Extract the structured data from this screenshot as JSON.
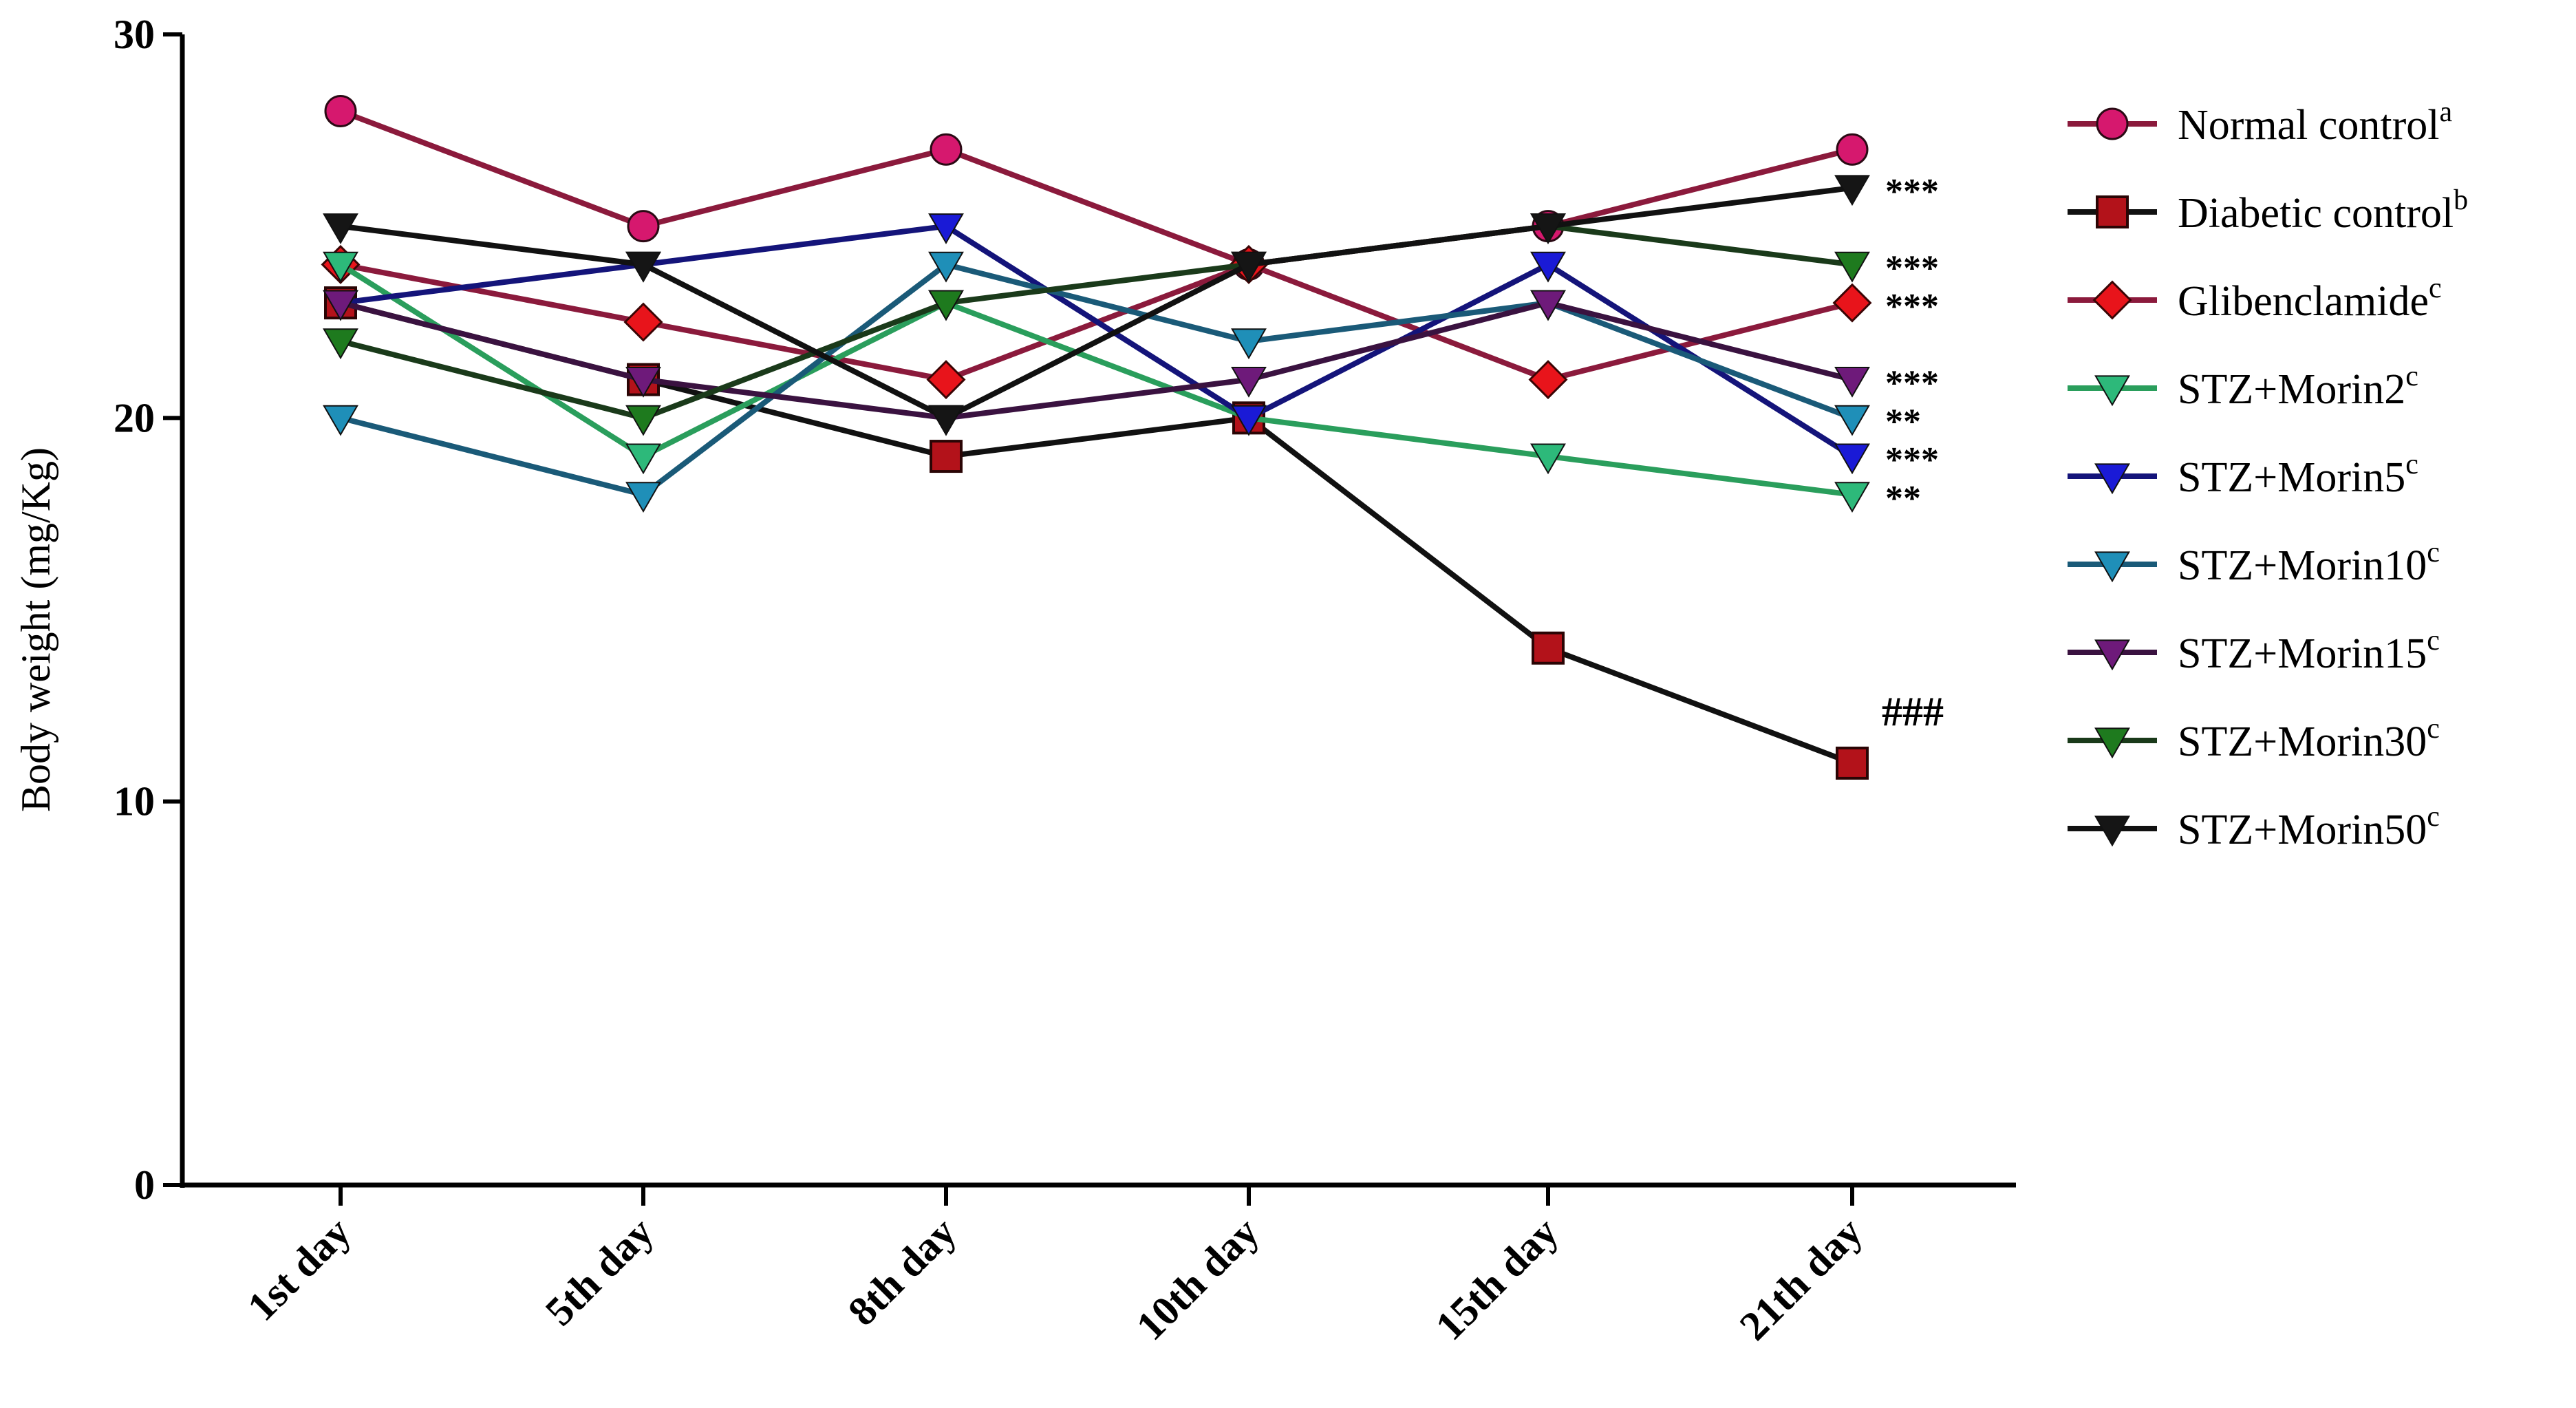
{
  "chart_data": {
    "type": "line",
    "title": "",
    "xlabel": "",
    "ylabel": "Body weight (mg/Kg)",
    "ylim": [
      0,
      30
    ],
    "yticks": [
      0,
      10,
      20,
      30
    ],
    "categories": [
      "1st day",
      "5th day",
      "8th day",
      "10th day",
      "15th day",
      "21th day"
    ],
    "legend_position": "right",
    "series": [
      {
        "name": "Normal control",
        "sup": "a",
        "color": "#d6186e",
        "line_color": "#8b1a3c",
        "marker": "circle",
        "values": [
          28,
          25,
          27,
          24,
          25,
          27
        ],
        "annotation": ""
      },
      {
        "name": "Diabetic control",
        "sup": "b",
        "color": "#b3121a",
        "line_color": "#111111",
        "marker": "square",
        "values": [
          23,
          21,
          19,
          20,
          14,
          11
        ],
        "annotation": "###"
      },
      {
        "name": "Glibenclamide",
        "sup": "c",
        "color": "#e8141b",
        "line_color": "#8b1a3c",
        "marker": "diamond",
        "values": [
          24,
          22.5,
          21,
          24,
          21,
          23
        ],
        "annotation": "***"
      },
      {
        "name": "STZ+Morin2",
        "sup": "c",
        "color": "#2db97a",
        "line_color": "#2a9e5c",
        "marker": "triangle-down",
        "values": [
          24,
          19,
          23,
          20,
          19,
          18
        ],
        "annotation": "**"
      },
      {
        "name": "STZ+Morin5",
        "sup": "c",
        "color": "#1a1ad6",
        "line_color": "#14147a",
        "marker": "triangle-down",
        "values": [
          23,
          24,
          25,
          20,
          24,
          19
        ],
        "annotation": "***"
      },
      {
        "name": "STZ+Morin10",
        "sup": "c",
        "color": "#1f8fb8",
        "line_color": "#1a5a78",
        "marker": "triangle-down",
        "values": [
          20,
          18,
          24,
          22,
          23,
          20
        ],
        "annotation": "**"
      },
      {
        "name": "STZ+Morin15",
        "sup": "c",
        "color": "#6e1a7a",
        "line_color": "#3a1240",
        "marker": "triangle-down",
        "values": [
          23,
          21,
          20,
          21,
          23,
          21
        ],
        "annotation": "***"
      },
      {
        "name": "STZ+Morin30",
        "sup": "c",
        "color": "#1e7a1e",
        "line_color": "#1a3a1a",
        "marker": "triangle-down",
        "values": [
          22,
          20,
          23,
          24,
          25,
          24
        ],
        "annotation": "***"
      },
      {
        "name": "STZ+Morin50",
        "sup": "c",
        "color": "#151515",
        "line_color": "#111111",
        "marker": "triangle-down",
        "values": [
          25,
          24,
          20,
          24,
          25,
          26
        ],
        "annotation": "***"
      }
    ]
  }
}
